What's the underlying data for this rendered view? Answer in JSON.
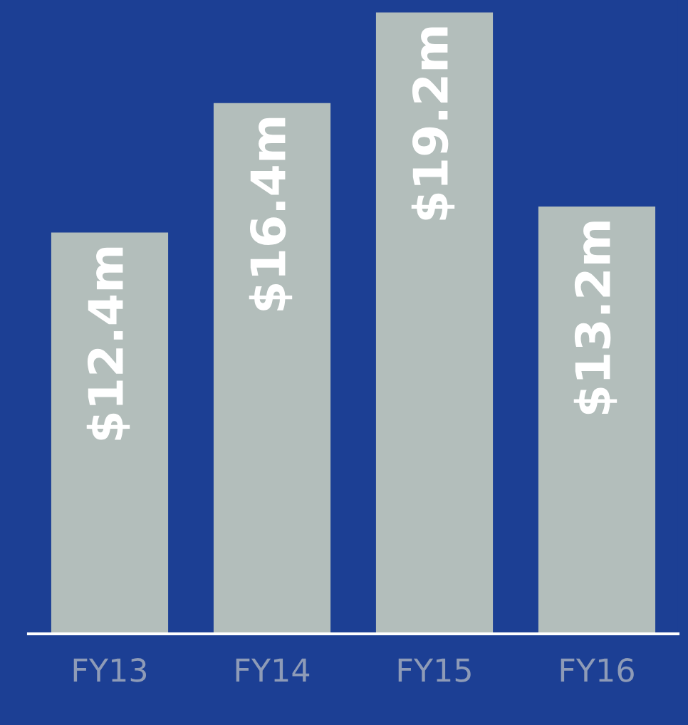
{
  "chart_data": {
    "type": "bar",
    "categories": [
      "FY13",
      "FY14",
      "FY15",
      "FY16"
    ],
    "values": [
      12.4,
      16.4,
      19.2,
      13.2
    ],
    "value_labels": [
      "$12.4m",
      "$16.4m",
      "$19.2m",
      "$13.2m"
    ],
    "color": "#b3bebb",
    "grid": false,
    "legend": false
  }
}
